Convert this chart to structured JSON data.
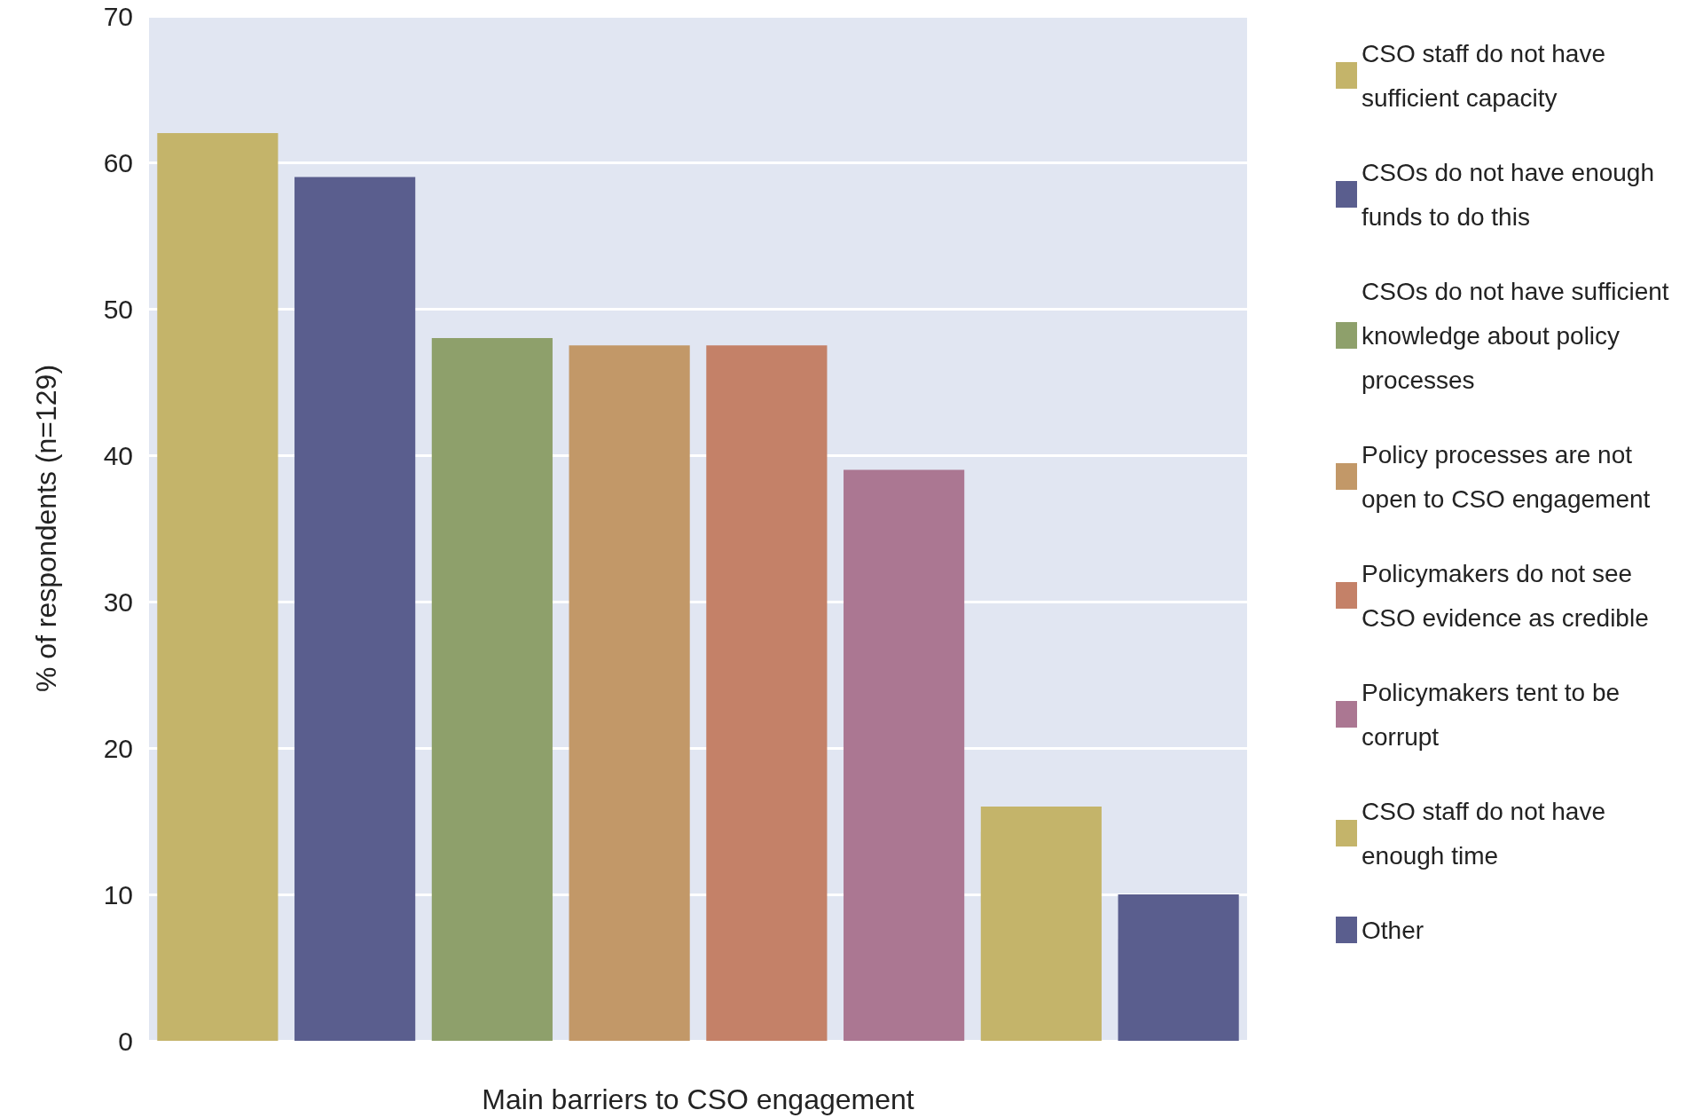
{
  "chart_data": {
    "type": "bar",
    "xlabel": "Main barriers to CSO engagement",
    "ylabel": "% of respondents (n=129)",
    "categories": [
      null,
      null,
      null,
      null,
      null,
      null,
      null,
      null
    ],
    "ylim": [
      0,
      70
    ],
    "yticks": [
      0,
      10,
      20,
      30,
      40,
      50,
      60,
      70
    ],
    "grid": "y",
    "legend": "right",
    "series": [
      {
        "name": "CSO staff do not have sufficient capacity",
        "color": "#c4b46a",
        "values": [
          62,
          null,
          null,
          null,
          null,
          null,
          null,
          null
        ]
      },
      {
        "name": "CSOs do not have enough funds to do this",
        "color": "#5a5e8e",
        "values": [
          null,
          59,
          null,
          null,
          null,
          null,
          null,
          null
        ]
      },
      {
        "name": "CSOs do not have sufficient knowledge about policy processes",
        "color": "#8ea06b",
        "values": [
          null,
          null,
          48,
          null,
          null,
          null,
          null,
          null
        ]
      },
      {
        "name": "Policy processes are not open to CSO engagement",
        "color": "#c29868",
        "values": [
          null,
          null,
          null,
          47.5,
          null,
          null,
          null,
          null
        ]
      },
      {
        "name": "Policymakers do not see CSO evidence as credible",
        "color": "#c48168",
        "values": [
          null,
          null,
          null,
          null,
          47.5,
          null,
          null,
          null
        ]
      },
      {
        "name": "Policymakers tent to be corrupt",
        "color": "#ab7792",
        "values": [
          null,
          null,
          null,
          null,
          null,
          39,
          null,
          null
        ]
      },
      {
        "name": "CSO staff do not have enough time",
        "color": "#c4b46a",
        "values": [
          null,
          null,
          null,
          null,
          null,
          null,
          16,
          null
        ]
      },
      {
        "name": "Other",
        "color": "#5a5e8e",
        "values": [
          null,
          null,
          null,
          null,
          null,
          null,
          null,
          10
        ]
      }
    ]
  }
}
